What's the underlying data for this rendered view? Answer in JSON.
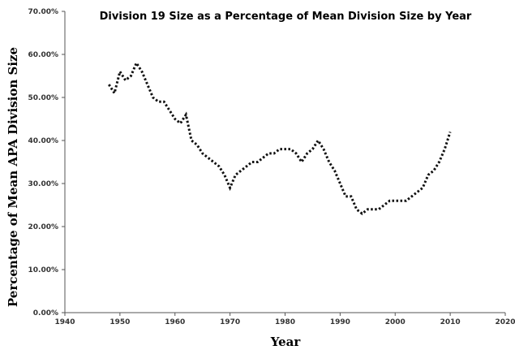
{
  "chart_data": {
    "type": "line",
    "title": "Division 19 Size as a Percentage of Mean Division Size by Year",
    "xlabel": "Year",
    "ylabel": "Percentage of Mean APA Division Size",
    "xlim": [
      1940,
      2020
    ],
    "ylim": [
      0,
      70
    ],
    "x_ticks": [
      "1940",
      "1950",
      "1960",
      "1970",
      "1980",
      "1990",
      "2000",
      "2010",
      "2020"
    ],
    "y_ticks": [
      "0.00%",
      "10.00%",
      "20.00%",
      "30.00%",
      "40.00%",
      "50.00%",
      "60.00%",
      "70.00%"
    ],
    "grid": false,
    "line_style": "dotted",
    "series_color": "#111111",
    "series": [
      {
        "x": [
          1948,
          1949,
          1950,
          1951,
          1952,
          1953,
          1954,
          1955,
          1956,
          1957,
          1958,
          1959,
          1960,
          1961,
          1962,
          1963,
          1964,
          1965,
          1966,
          1967,
          1968,
          1969,
          1970,
          1971,
          1972,
          1973,
          1974,
          1975,
          1976,
          1977,
          1978,
          1979,
          1980,
          1981,
          1982,
          1983,
          1984,
          1985,
          1986,
          1987,
          1988,
          1989,
          1990,
          1991,
          1992,
          1993,
          1994,
          1995,
          1996,
          1997,
          1998,
          1999,
          2000,
          2001,
          2002,
          2003,
          2004,
          2005,
          2006,
          2007,
          2008,
          2009,
          2010
        ],
        "y": [
          53,
          51,
          56,
          54,
          55,
          58,
          56,
          53,
          50,
          49,
          49,
          47,
          45,
          44,
          46,
          40,
          39,
          37,
          36,
          35,
          34,
          32,
          29,
          32,
          33,
          34,
          35,
          35,
          36,
          37,
          37,
          38,
          38,
          38,
          37,
          35,
          37,
          38,
          40,
          38,
          35,
          33,
          30,
          27,
          27,
          24,
          23,
          24,
          24,
          24,
          25,
          26,
          26,
          26,
          26,
          27,
          28,
          29,
          32,
          33,
          35,
          38,
          42
        ]
      }
    ]
  }
}
